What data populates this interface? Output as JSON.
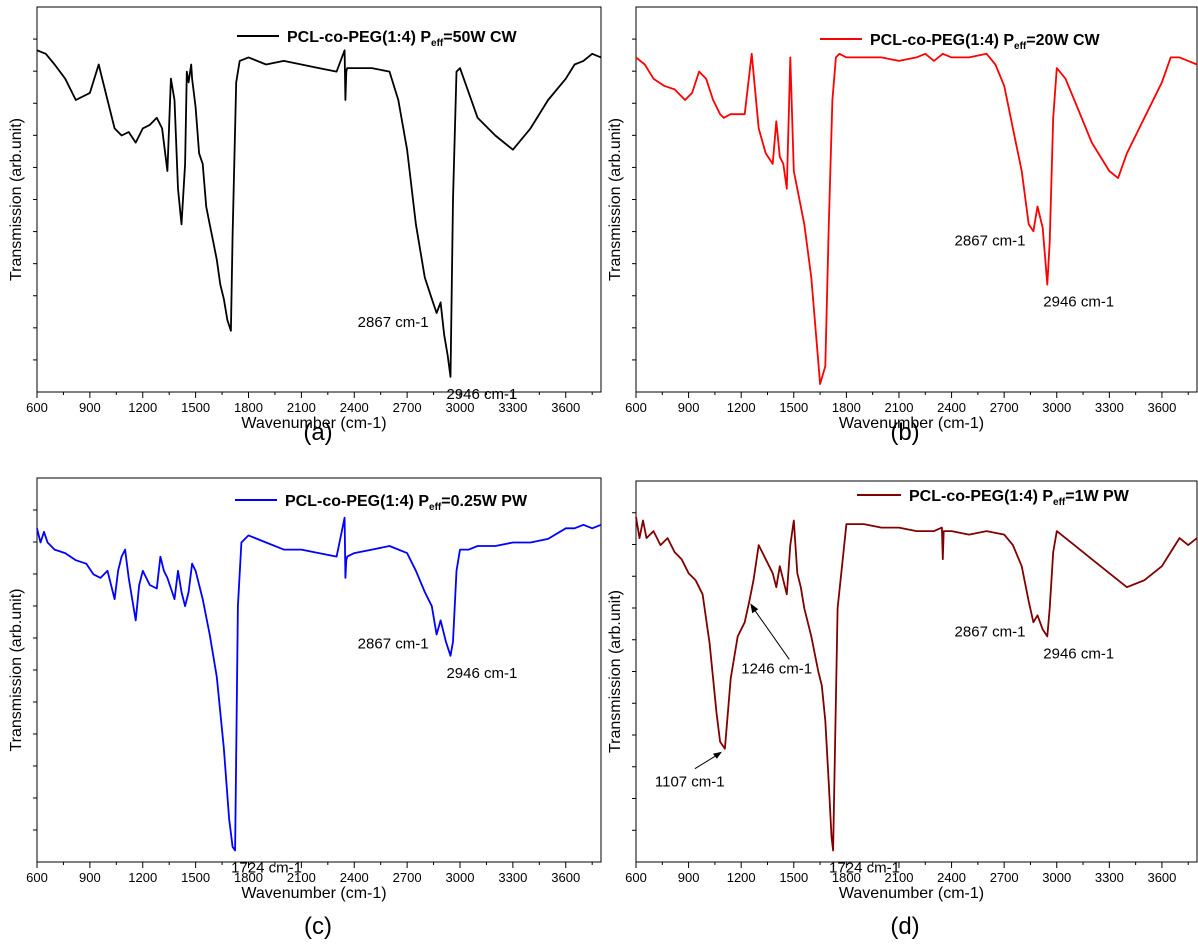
{
  "chart_data": [
    {
      "type": "line",
      "panel_label": "(a)",
      "xlabel": "Wavenumber (cm-1)",
      "ylabel": "Transmission (arb.unit)",
      "xlim": [
        600,
        3800
      ],
      "xticks": [
        "600",
        "900",
        "1200",
        "1500",
        "1800",
        "2100",
        "2400",
        "2700",
        "3000",
        "3300",
        "3600"
      ],
      "legend": {
        "prefix": "PCL-co-PEG(1:4) P",
        "sub": "eff",
        "suffix": "=50W CW",
        "position": "top-right"
      },
      "color": "#000000",
      "series": [
        {
          "x": [
            600,
            650,
            700,
            760,
            820,
            900,
            950,
            1000,
            1040,
            1080,
            1120,
            1160,
            1200,
            1240,
            1280,
            1310,
            1340,
            1360,
            1380,
            1400,
            1420,
            1440,
            1450,
            1460,
            1475,
            1480,
            1500,
            1520,
            1540,
            1560,
            1580,
            1600,
            1620,
            1640,
            1660,
            1680,
            1700,
            1710,
            1730,
            1750,
            1800,
            1900,
            2000,
            2100,
            2200,
            2300,
            2345,
            2350,
            2355,
            2360,
            2400,
            2500,
            2600,
            2650,
            2700,
            2750,
            2800,
            2840,
            2867,
            2890,
            2910,
            2930,
            2946,
            2960,
            2980,
            3000,
            3050,
            3100,
            3200,
            3300,
            3400,
            3500,
            3600,
            3650,
            3700,
            3750,
            3800
          ],
          "y": [
            0.94,
            0.93,
            0.9,
            0.86,
            0.8,
            0.82,
            0.9,
            0.8,
            0.72,
            0.7,
            0.71,
            0.68,
            0.72,
            0.73,
            0.75,
            0.72,
            0.6,
            0.86,
            0.8,
            0.55,
            0.45,
            0.62,
            0.88,
            0.85,
            0.9,
            0.86,
            0.78,
            0.65,
            0.62,
            0.5,
            0.45,
            0.4,
            0.35,
            0.28,
            0.24,
            0.18,
            0.15,
            0.42,
            0.85,
            0.91,
            0.92,
            0.9,
            0.91,
            0.9,
            0.89,
            0.88,
            0.94,
            0.8,
            0.88,
            0.89,
            0.89,
            0.89,
            0.88,
            0.8,
            0.66,
            0.45,
            0.3,
            0.24,
            0.2,
            0.23,
            0.14,
            0.08,
            0.02,
            0.52,
            0.88,
            0.89,
            0.82,
            0.75,
            0.7,
            0.66,
            0.72,
            0.8,
            0.86,
            0.9,
            0.91,
            0.93,
            0.92
          ]
        }
      ],
      "annotations": [
        {
          "text": "2867 cm-1",
          "x": 2867,
          "y": 0.2,
          "anchor": "end"
        },
        {
          "text": "2946 cm-1",
          "x": 2946,
          "y": 0.02,
          "anchor": "start"
        }
      ]
    },
    {
      "type": "line",
      "panel_label": "(b)",
      "xlabel": "Wavenumber (cm-1)",
      "ylabel": "Transmission (arb.unit)",
      "xlim": [
        600,
        3800
      ],
      "xticks": [
        "600",
        "900",
        "1200",
        "1500",
        "1800",
        "2100",
        "2400",
        "2700",
        "3000",
        "3300",
        "3600"
      ],
      "legend": {
        "prefix": "PCL-co-PEG(1:4) P",
        "sub": "eff",
        "suffix": "=20W CW",
        "position": "top-right"
      },
      "color": "#ff0000",
      "series": [
        {
          "x": [
            600,
            650,
            700,
            760,
            820,
            880,
            920,
            960,
            1000,
            1040,
            1080,
            1100,
            1140,
            1180,
            1220,
            1260,
            1300,
            1340,
            1380,
            1400,
            1420,
            1440,
            1460,
            1480,
            1500,
            1520,
            1560,
            1600,
            1630,
            1650,
            1680,
            1700,
            1720,
            1740,
            1760,
            1800,
            1900,
            2000,
            2100,
            2200,
            2250,
            2300,
            2350,
            2400,
            2500,
            2600,
            2650,
            2700,
            2750,
            2800,
            2840,
            2867,
            2890,
            2920,
            2946,
            2960,
            2980,
            3000,
            3050,
            3100,
            3200,
            3300,
            3350,
            3400,
            3500,
            3600,
            3650,
            3700,
            3750,
            3800
          ],
          "y": [
            0.92,
            0.9,
            0.86,
            0.84,
            0.83,
            0.8,
            0.82,
            0.88,
            0.86,
            0.8,
            0.76,
            0.75,
            0.76,
            0.76,
            0.76,
            0.93,
            0.72,
            0.65,
            0.62,
            0.74,
            0.64,
            0.62,
            0.55,
            0.92,
            0.6,
            0.55,
            0.45,
            0.3,
            0.12,
            0.0,
            0.05,
            0.45,
            0.8,
            0.92,
            0.93,
            0.92,
            0.92,
            0.92,
            0.91,
            0.92,
            0.93,
            0.91,
            0.93,
            0.92,
            0.92,
            0.93,
            0.9,
            0.84,
            0.72,
            0.6,
            0.45,
            0.43,
            0.5,
            0.44,
            0.28,
            0.4,
            0.75,
            0.89,
            0.86,
            0.8,
            0.68,
            0.6,
            0.58,
            0.65,
            0.75,
            0.85,
            0.92,
            0.92,
            0.91,
            0.9
          ]
        }
      ],
      "annotations": [
        {
          "text": "2867 cm-1",
          "x": 2867,
          "y": 0.43,
          "anchor": "end"
        },
        {
          "text": "2946 cm-1",
          "x": 2946,
          "y": 0.28,
          "anchor": "start"
        }
      ]
    },
    {
      "type": "line",
      "panel_label": "(c)",
      "xlabel": "Wavenumber (cm-1)",
      "ylabel": "Transmission (arb.unit)",
      "xlim": [
        600,
        3800
      ],
      "xticks": [
        "600",
        "900",
        "1200",
        "1500",
        "1800",
        "2100",
        "2400",
        "2700",
        "3000",
        "3300",
        "3600"
      ],
      "legend": {
        "prefix": "PCL-co-PEG(1:4) P",
        "sub": "eff",
        "suffix": "=0.25W PW",
        "position": "top-right"
      },
      "color": "#0000ff",
      "series": [
        {
          "x": [
            600,
            620,
            640,
            660,
            700,
            760,
            820,
            880,
            920,
            960,
            1000,
            1040,
            1060,
            1080,
            1100,
            1120,
            1140,
            1160,
            1180,
            1200,
            1240,
            1280,
            1300,
            1320,
            1340,
            1380,
            1400,
            1420,
            1440,
            1460,
            1480,
            1500,
            1540,
            1580,
            1620,
            1660,
            1690,
            1710,
            1724,
            1740,
            1760,
            1800,
            1900,
            2000,
            2100,
            2200,
            2300,
            2345,
            2350,
            2355,
            2360,
            2400,
            2500,
            2600,
            2700,
            2750,
            2800,
            2840,
            2867,
            2890,
            2920,
            2946,
            2960,
            2980,
            3000,
            3050,
            3100,
            3200,
            3300,
            3400,
            3500,
            3600,
            3650,
            3700,
            3750,
            3800
          ],
          "y": [
            0.92,
            0.88,
            0.91,
            0.88,
            0.86,
            0.85,
            0.83,
            0.82,
            0.79,
            0.78,
            0.8,
            0.72,
            0.8,
            0.84,
            0.86,
            0.78,
            0.72,
            0.66,
            0.76,
            0.8,
            0.76,
            0.75,
            0.84,
            0.8,
            0.78,
            0.72,
            0.8,
            0.74,
            0.7,
            0.74,
            0.82,
            0.8,
            0.72,
            0.62,
            0.5,
            0.3,
            0.1,
            0.02,
            0.01,
            0.7,
            0.88,
            0.9,
            0.88,
            0.86,
            0.86,
            0.85,
            0.84,
            0.95,
            0.78,
            0.83,
            0.84,
            0.85,
            0.86,
            0.87,
            0.85,
            0.8,
            0.74,
            0.7,
            0.62,
            0.66,
            0.6,
            0.56,
            0.6,
            0.8,
            0.86,
            0.86,
            0.87,
            0.87,
            0.88,
            0.88,
            0.89,
            0.92,
            0.92,
            0.93,
            0.92,
            0.93
          ]
        }
      ],
      "annotations": [
        {
          "text": "2867 cm-1",
          "x": 2867,
          "y": 0.62,
          "anchor": "end"
        },
        {
          "text": "2946 cm-1",
          "x": 2946,
          "y": 0.56,
          "anchor": "start"
        },
        {
          "text": "1724 cm-1",
          "x": 1724,
          "y": 0.01,
          "anchor": "start"
        }
      ]
    },
    {
      "type": "line",
      "panel_label": "(d)",
      "xlabel": "Wavenumber (cm-1)",
      "ylabel": "Transmission (arb.unit)",
      "xlim": [
        600,
        3800
      ],
      "xticks": [
        "600",
        "900",
        "1200",
        "1500",
        "1800",
        "2100",
        "2400",
        "2700",
        "3000",
        "3300",
        "3600"
      ],
      "legend": {
        "prefix": "PCL-co-PEG(1:4) P",
        "sub": "eff",
        "suffix": "=1W PW",
        "position": "top-right"
      },
      "color": "#800000",
      "series": [
        {
          "x": [
            600,
            620,
            640,
            660,
            700,
            740,
            780,
            820,
            860,
            900,
            940,
            980,
            1020,
            1060,
            1080,
            1107,
            1140,
            1180,
            1220,
            1246,
            1270,
            1300,
            1340,
            1380,
            1400,
            1420,
            1440,
            1460,
            1480,
            1500,
            1520,
            1540,
            1560,
            1600,
            1640,
            1660,
            1680,
            1700,
            1715,
            1724,
            1735,
            1750,
            1800,
            1900,
            2000,
            2100,
            2200,
            2300,
            2345,
            2350,
            2355,
            2400,
            2500,
            2600,
            2700,
            2750,
            2800,
            2840,
            2867,
            2890,
            2920,
            2946,
            2960,
            2980,
            3000,
            3050,
            3100,
            3200,
            3300,
            3400,
            3500,
            3600,
            3650,
            3700,
            3750,
            3800
          ],
          "y": [
            0.96,
            0.9,
            0.95,
            0.9,
            0.92,
            0.88,
            0.9,
            0.86,
            0.84,
            0.8,
            0.78,
            0.74,
            0.6,
            0.4,
            0.32,
            0.3,
            0.5,
            0.62,
            0.66,
            0.72,
            0.78,
            0.88,
            0.84,
            0.8,
            0.76,
            0.82,
            0.78,
            0.74,
            0.88,
            0.95,
            0.8,
            0.76,
            0.7,
            0.62,
            0.52,
            0.48,
            0.38,
            0.2,
            0.05,
            0.01,
            0.3,
            0.7,
            0.94,
            0.94,
            0.93,
            0.93,
            0.92,
            0.92,
            0.93,
            0.84,
            0.92,
            0.92,
            0.91,
            0.92,
            0.91,
            0.88,
            0.82,
            0.72,
            0.66,
            0.68,
            0.64,
            0.62,
            0.7,
            0.86,
            0.92,
            0.9,
            0.88,
            0.84,
            0.8,
            0.76,
            0.78,
            0.82,
            0.86,
            0.9,
            0.88,
            0.9
          ]
        }
      ],
      "annotations": [
        {
          "text": "2867 cm-1",
          "x": 2867,
          "y": 0.66,
          "anchor": "end"
        },
        {
          "text": "2946 cm-1",
          "x": 2946,
          "y": 0.62,
          "anchor": "start"
        },
        {
          "text": "1107 cm-1",
          "x": 1107,
          "y": 0.3,
          "anchor": "arrow-below-left"
        },
        {
          "text": "1246 cm-1",
          "x": 1246,
          "y": 0.72,
          "anchor": "arrow-below-right"
        },
        {
          "text": "1724 cm-1",
          "x": 1724,
          "y": 0.01,
          "anchor": "start"
        }
      ]
    }
  ]
}
